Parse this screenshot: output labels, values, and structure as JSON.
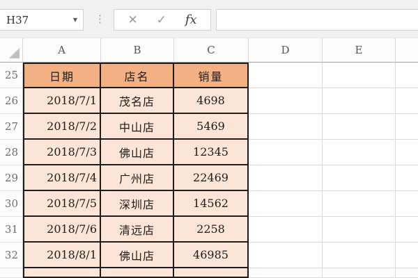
{
  "formula_bar": {
    "name_box_value": "H37",
    "formula_value": "",
    "cancel_icon": "✕",
    "enter_icon": "✓",
    "fx_icon": "fx"
  },
  "grid": {
    "column_letters": [
      "A",
      "B",
      "C",
      "D",
      "E"
    ],
    "row_numbers": [
      "25",
      "26",
      "27",
      "28",
      "29",
      "30",
      "31",
      "32"
    ]
  },
  "table": {
    "headers": {
      "date": "日期",
      "store": "店名",
      "sales": "销量"
    },
    "rows": [
      {
        "date": "2018/7/1",
        "store": "茂名店",
        "sales": "4698"
      },
      {
        "date": "2018/7/2",
        "store": "中山店",
        "sales": "5469"
      },
      {
        "date": "2018/7/3",
        "store": "佛山店",
        "sales": "12345"
      },
      {
        "date": "2018/7/4",
        "store": "广州店",
        "sales": "22469"
      },
      {
        "date": "2018/7/5",
        "store": "深圳店",
        "sales": "14562"
      },
      {
        "date": "2018/7/6",
        "store": "清远店",
        "sales": "2258"
      },
      {
        "date": "2018/8/1",
        "store": "佛山店",
        "sales": "46985"
      }
    ]
  },
  "colors": {
    "header_fill": "#F3B183",
    "data_fill": "#FCE4D6",
    "table_border": "#1C1C1C",
    "gridline": "#D9D9D9"
  }
}
